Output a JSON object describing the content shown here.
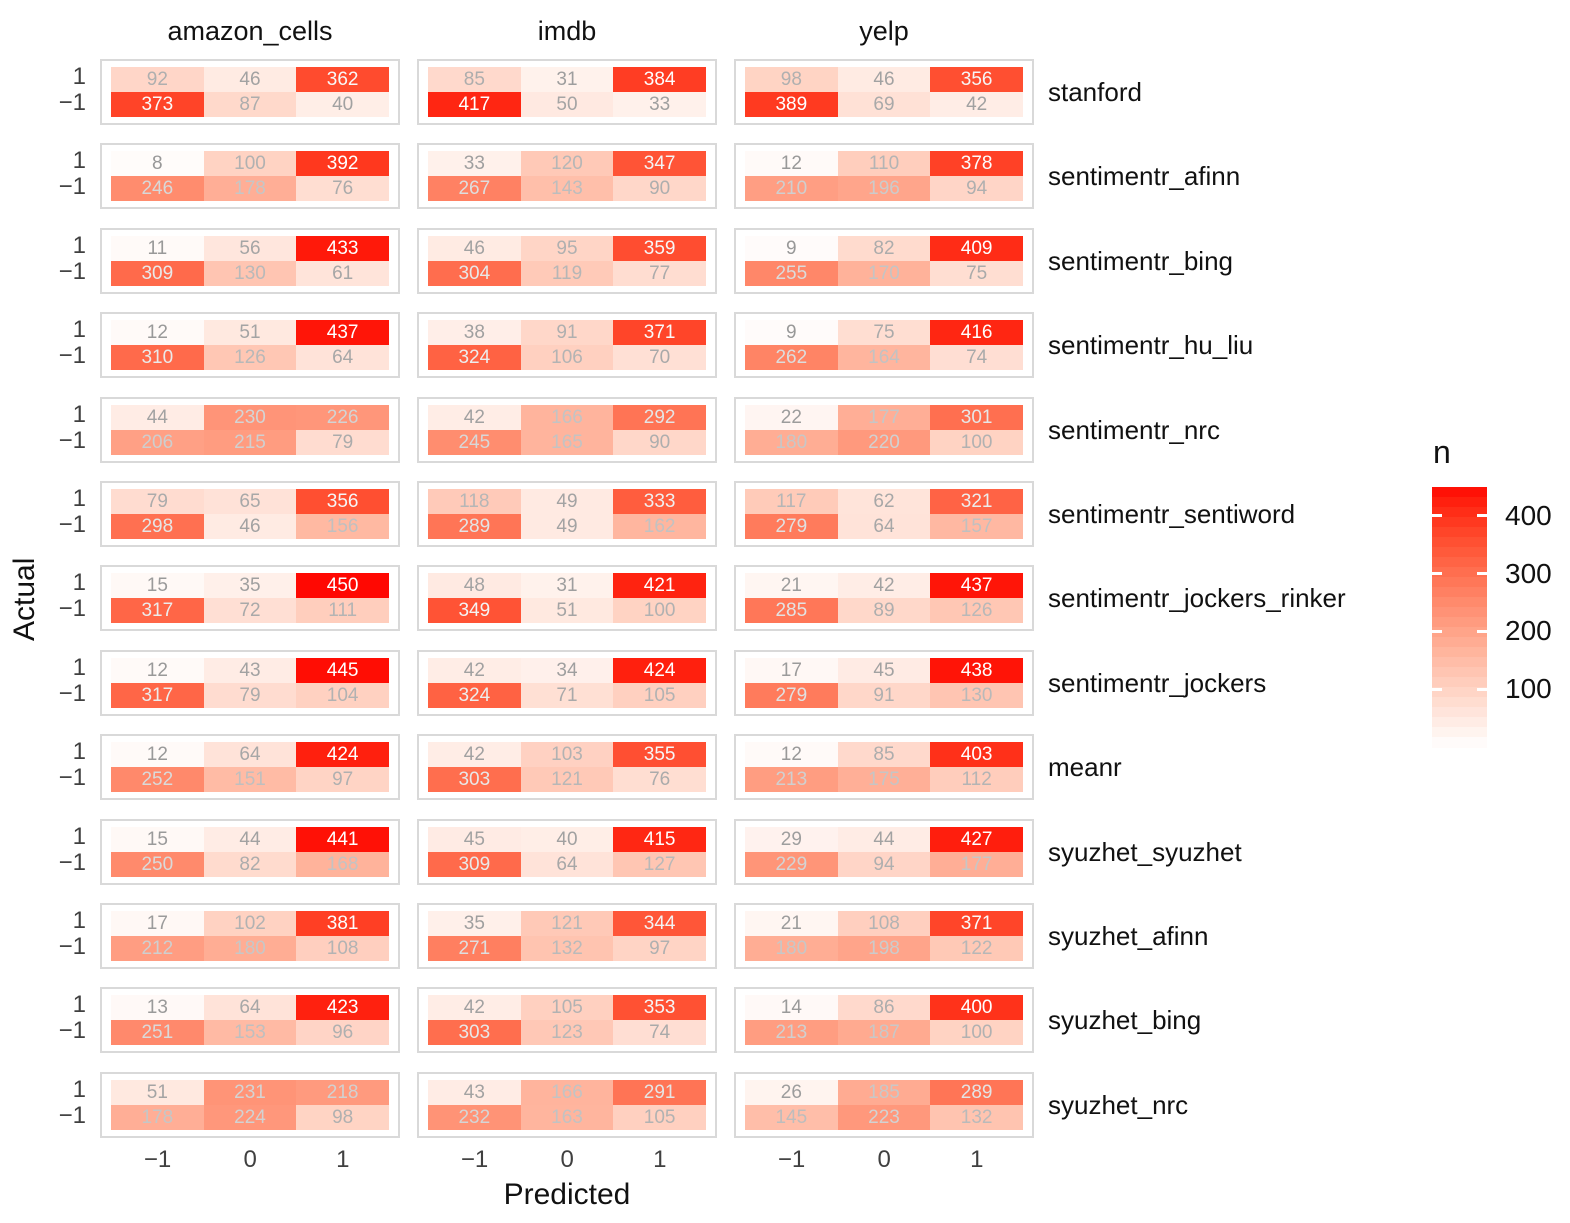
{
  "chart_data": {
    "type": "heatmap",
    "title": "",
    "xlabel": "Predicted",
    "ylabel": "Actual",
    "facet_columns": [
      "amazon_cells",
      "imdb",
      "yelp"
    ],
    "facet_rows": [
      "stanford",
      "sentimentr_afinn",
      "sentimentr_bing",
      "sentimentr_hu_liu",
      "sentimentr_nrc",
      "sentimentr_sentiword",
      "sentimentr_jockers_rinker",
      "sentimentr_jockers",
      "meanr",
      "syuzhet_syuzhet",
      "syuzhet_afinn",
      "syuzhet_bing",
      "syuzhet_nrc"
    ],
    "x_ticks": [
      "−1",
      "0",
      "1"
    ],
    "y_ticks": [
      "1",
      "−1"
    ],
    "actual_levels": [
      1,
      -1
    ],
    "predicted_levels": [
      -1,
      0,
      1
    ],
    "legend": {
      "title": "n",
      "tick_values": [
        400,
        300,
        200,
        100
      ],
      "tick_labels": [
        "400",
        "300",
        "200",
        "100"
      ],
      "scale_min": 0,
      "scale_max": 450,
      "low_color": "#FFFFFF",
      "high_color": "#FF0000"
    },
    "matrices": [
      {
        "method": "stanford",
        "values": [
          [
            [
              92,
              46,
              362
            ],
            [
              373,
              87,
              40
            ]
          ],
          [
            [
              85,
              31,
              384
            ],
            [
              417,
              50,
              33
            ]
          ],
          [
            [
              98,
              46,
              356
            ],
            [
              389,
              69,
              42
            ]
          ]
        ]
      },
      {
        "method": "sentimentr_afinn",
        "values": [
          [
            [
              8,
              100,
              392
            ],
            [
              246,
              178,
              76
            ]
          ],
          [
            [
              33,
              120,
              347
            ],
            [
              267,
              143,
              90
            ]
          ],
          [
            [
              12,
              110,
              378
            ],
            [
              210,
              196,
              94
            ]
          ]
        ]
      },
      {
        "method": "sentimentr_bing",
        "values": [
          [
            [
              11,
              56,
              433
            ],
            [
              309,
              130,
              61
            ]
          ],
          [
            [
              46,
              95,
              359
            ],
            [
              304,
              119,
              77
            ]
          ],
          [
            [
              9,
              82,
              409
            ],
            [
              255,
              170,
              75
            ]
          ]
        ]
      },
      {
        "method": "sentimentr_hu_liu",
        "values": [
          [
            [
              12,
              51,
              437
            ],
            [
              310,
              126,
              64
            ]
          ],
          [
            [
              38,
              91,
              371
            ],
            [
              324,
              106,
              70
            ]
          ],
          [
            [
              9,
              75,
              416
            ],
            [
              262,
              164,
              74
            ]
          ]
        ]
      },
      {
        "method": "sentimentr_nrc",
        "values": [
          [
            [
              44,
              230,
              226
            ],
            [
              206,
              215,
              79
            ]
          ],
          [
            [
              42,
              166,
              292
            ],
            [
              245,
              165,
              90
            ]
          ],
          [
            [
              22,
              177,
              301
            ],
            [
              180,
              220,
              100
            ]
          ]
        ]
      },
      {
        "method": "sentimentr_sentiword",
        "values": [
          [
            [
              79,
              65,
              356
            ],
            [
              298,
              46,
              156
            ]
          ],
          [
            [
              118,
              49,
              333
            ],
            [
              289,
              49,
              162
            ]
          ],
          [
            [
              117,
              62,
              321
            ],
            [
              279,
              64,
              157
            ]
          ]
        ]
      },
      {
        "method": "sentimentr_jockers_rinker",
        "values": [
          [
            [
              15,
              35,
              450
            ],
            [
              317,
              72,
              111
            ]
          ],
          [
            [
              48,
              31,
              421
            ],
            [
              349,
              51,
              100
            ]
          ],
          [
            [
              21,
              42,
              437
            ],
            [
              285,
              89,
              126
            ]
          ]
        ]
      },
      {
        "method": "sentimentr_jockers",
        "values": [
          [
            [
              12,
              43,
              445
            ],
            [
              317,
              79,
              104
            ]
          ],
          [
            [
              42,
              34,
              424
            ],
            [
              324,
              71,
              105
            ]
          ],
          [
            [
              17,
              45,
              438
            ],
            [
              279,
              91,
              130
            ]
          ]
        ]
      },
      {
        "method": "meanr",
        "values": [
          [
            [
              12,
              64,
              424
            ],
            [
              252,
              151,
              97
            ]
          ],
          [
            [
              42,
              103,
              355
            ],
            [
              303,
              121,
              76
            ]
          ],
          [
            [
              12,
              85,
              403
            ],
            [
              213,
              175,
              112
            ]
          ]
        ]
      },
      {
        "method": "syuzhet_syuzhet",
        "values": [
          [
            [
              15,
              44,
              441
            ],
            [
              250,
              82,
              168
            ]
          ],
          [
            [
              45,
              40,
              415
            ],
            [
              309,
              64,
              127
            ]
          ],
          [
            [
              29,
              44,
              427
            ],
            [
              229,
              94,
              177
            ]
          ]
        ]
      },
      {
        "method": "syuzhet_afinn",
        "values": [
          [
            [
              17,
              102,
              381
            ],
            [
              212,
              180,
              108
            ]
          ],
          [
            [
              35,
              121,
              344
            ],
            [
              271,
              132,
              97
            ]
          ],
          [
            [
              21,
              108,
              371
            ],
            [
              180,
              198,
              122
            ]
          ]
        ]
      },
      {
        "method": "syuzhet_bing",
        "values": [
          [
            [
              13,
              64,
              423
            ],
            [
              251,
              153,
              96
            ]
          ],
          [
            [
              42,
              105,
              353
            ],
            [
              303,
              123,
              74
            ]
          ],
          [
            [
              14,
              86,
              400
            ],
            [
              213,
              187,
              100
            ]
          ]
        ]
      },
      {
        "method": "syuzhet_nrc",
        "values": [
          [
            [
              51,
              231,
              218
            ],
            [
              178,
              224,
              98
            ]
          ],
          [
            [
              43,
              166,
              291
            ],
            [
              232,
              163,
              105
            ]
          ],
          [
            [
              26,
              185,
              289
            ],
            [
              145,
              223,
              132
            ]
          ]
        ]
      }
    ]
  }
}
